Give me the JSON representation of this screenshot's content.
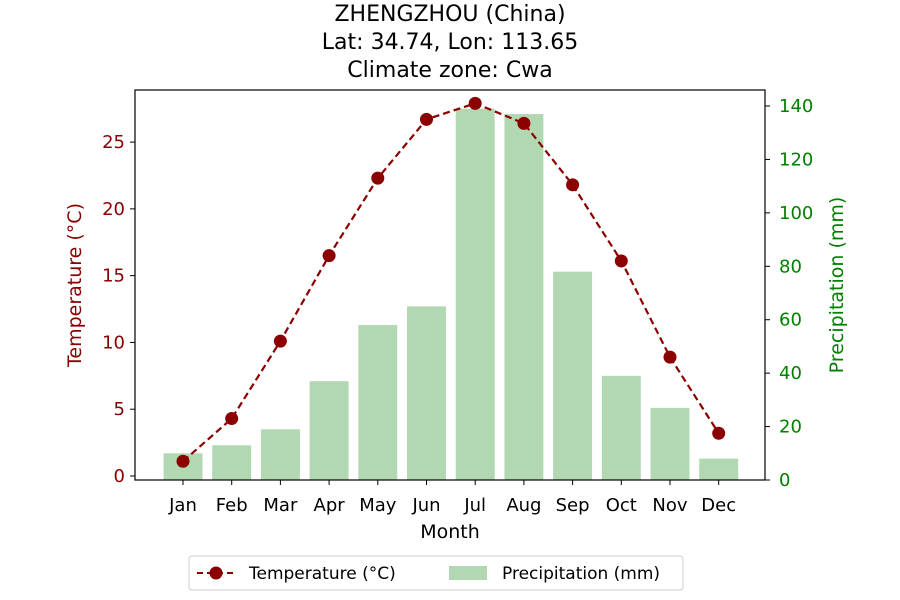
{
  "chart_data": {
    "type": "bar+line",
    "title": [
      "ZHENGZHOU (China)",
      "Lat: 34.74, Lon: 113.65",
      "Climate zone: Cwa"
    ],
    "xlabel": "Month",
    "categories": [
      "Jan",
      "Feb",
      "Mar",
      "Apr",
      "May",
      "Jun",
      "Jul",
      "Aug",
      "Sep",
      "Oct",
      "Nov",
      "Dec"
    ],
    "temperature": {
      "name": "Temperature (°C)",
      "axis_label": "Temperature (°C)",
      "color": "#8b0000",
      "values": [
        1.1,
        4.3,
        10.1,
        16.5,
        22.3,
        26.7,
        27.9,
        26.4,
        21.8,
        16.1,
        8.9,
        3.2
      ],
      "ylim": [
        -0.3,
        28.9
      ],
      "ticks": [
        0,
        5,
        10,
        15,
        20,
        25
      ]
    },
    "precipitation": {
      "name": "Precipitation (mm)",
      "axis_label": "Precipitation (mm)",
      "color": "#b2d8b2",
      "axis_color": "#008000",
      "values": [
        10,
        13,
        19,
        37,
        58,
        65,
        139,
        137,
        78,
        39,
        27,
        8
      ],
      "ylim": [
        0,
        146
      ],
      "ticks": [
        0,
        20,
        40,
        60,
        80,
        100,
        120,
        140
      ]
    },
    "legend_position": "bottom-center"
  }
}
